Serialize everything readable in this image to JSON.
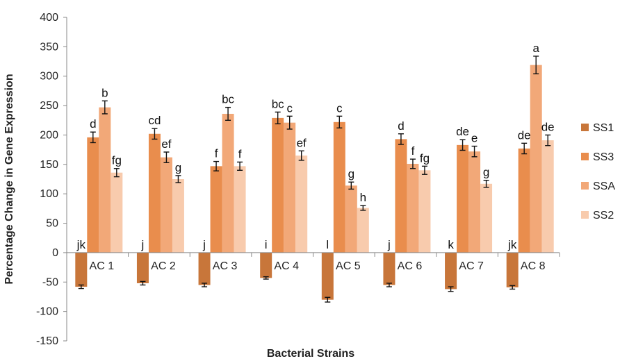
{
  "chart_data": {
    "type": "bar",
    "title": "",
    "xlabel": "Bacterial Strains",
    "ylabel": "Percentage Change in Gene Expression",
    "ylim": [
      -150,
      400
    ],
    "yticks": [
      -150,
      -100,
      -50,
      0,
      50,
      100,
      150,
      200,
      250,
      300,
      350,
      400
    ],
    "grid": false,
    "legend_position": "right",
    "categories": [
      "AC 1",
      "AC 2",
      "AC 3",
      "AC 4",
      "AC 5",
      "AC 6",
      "AC 7",
      "AC 8"
    ],
    "series": [
      {
        "name": "SS1",
        "color": "#c8763a",
        "values": [
          -58,
          -52,
          -55,
          -43,
          -80,
          -55,
          -62,
          -59
        ],
        "errors": [
          3,
          3,
          3,
          2,
          4,
          3,
          4,
          3
        ],
        "labels": [
          "jk",
          "j",
          "j",
          "i",
          "l",
          "j",
          "k",
          "jk"
        ]
      },
      {
        "name": "SS3",
        "color": "#e98d4d",
        "values": [
          196,
          202,
          147,
          229,
          222,
          193,
          183,
          177
        ],
        "errors": [
          9,
          9,
          8,
          10,
          10,
          9,
          9,
          9
        ],
        "labels": [
          "d",
          "cd",
          "f",
          "bc",
          "c",
          "d",
          "de",
          "de"
        ]
      },
      {
        "name": "SSA",
        "color": "#f2a878",
        "values": [
          247,
          162,
          236,
          221,
          114,
          151,
          172,
          319
        ],
        "errors": [
          11,
          9,
          11,
          11,
          6,
          8,
          9,
          15
        ],
        "labels": [
          "b",
          "ef",
          "bc",
          "c",
          "g",
          "f",
          "e",
          "a"
        ]
      },
      {
        "name": "SS2",
        "color": "#f8cbad",
        "values": [
          136,
          125,
          147,
          165,
          76,
          140,
          117,
          191
        ],
        "errors": [
          7,
          6,
          7,
          8,
          4,
          7,
          6,
          9
        ],
        "labels": [
          "fg",
          "g",
          "f",
          "ef",
          "h",
          "fg",
          "g",
          "de"
        ]
      }
    ]
  }
}
